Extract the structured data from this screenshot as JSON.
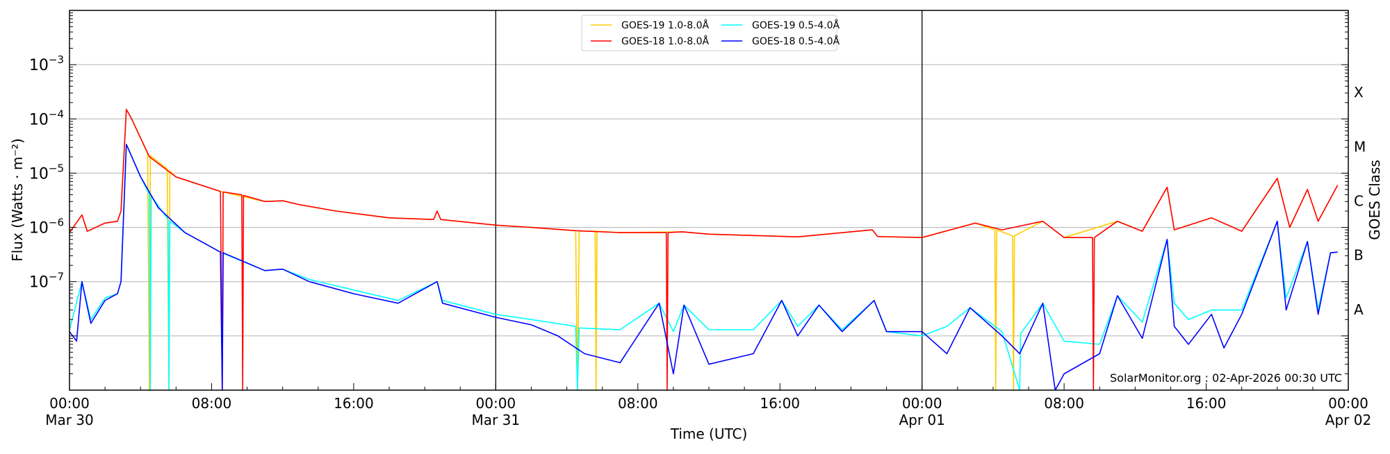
{
  "chart_data": {
    "type": "line",
    "xlabel": "Time (UTC)",
    "ylabel": "Flux (Watts · m⁻²)",
    "ylabel_right": "GOES Class",
    "y_scale": "log",
    "ylim": [
      1e-09,
      0.01
    ],
    "xlim": [
      "2026-03-30 00:00",
      "2026-04-02 00:00"
    ],
    "x_unit": "hours since 2026-03-30 00:00 UTC",
    "grid": "horizontal at decades",
    "legend_placement": "top-center",
    "y_ticks": [
      {
        "value": 0.001,
        "base": "10",
        "exp": "−3"
      },
      {
        "value": 0.0001,
        "base": "10",
        "exp": "−4"
      },
      {
        "value": 1e-05,
        "base": "10",
        "exp": "−5"
      },
      {
        "value": 1e-06,
        "base": "10",
        "exp": "−6"
      },
      {
        "value": 1e-07,
        "base": "10",
        "exp": "−7"
      }
    ],
    "class_ticks": [
      {
        "label": "X",
        "value": 0.000316
      },
      {
        "label": "M",
        "value": 3.16e-05
      },
      {
        "label": "C",
        "value": 3.16e-06
      },
      {
        "label": "B",
        "value": 3.16e-07
      },
      {
        "label": "A",
        "value": 3.16e-08
      }
    ],
    "x_ticks": [
      {
        "hour": 0,
        "time": "00:00",
        "date": "Mar 30"
      },
      {
        "hour": 8,
        "time": "08:00",
        "date": ""
      },
      {
        "hour": 16,
        "time": "16:00",
        "date": ""
      },
      {
        "hour": 24,
        "time": "00:00",
        "date": "Mar 31"
      },
      {
        "hour": 32,
        "time": "08:00",
        "date": ""
      },
      {
        "hour": 40,
        "time": "16:00",
        "date": ""
      },
      {
        "hour": 48,
        "time": "00:00",
        "date": "Apr 01"
      },
      {
        "hour": 56,
        "time": "08:00",
        "date": ""
      },
      {
        "hour": 64,
        "time": "16:00",
        "date": ""
      },
      {
        "hour": 72,
        "time": "00:00",
        "date": "Apr 02"
      }
    ],
    "day_lines": [
      24,
      48
    ],
    "annotation": "SolarMonitor.org : 02-Apr-2026 00:30 UTC",
    "series": [
      {
        "name": "GOES-19 1.0-8.0Å",
        "color": "#ffcc00",
        "points": [
          [
            0,
            8e-07
          ],
          [
            0.7,
            1.7e-06
          ],
          [
            1,
            8.5e-07
          ],
          [
            2,
            1.2e-06
          ],
          [
            2.7,
            1.3e-06
          ],
          [
            2.9,
            2e-06
          ],
          [
            3.2,
            0.00015
          ],
          [
            3.5,
            0.0001
          ],
          [
            4.4,
            2.3e-05
          ],
          [
            4.5,
            1e-09
          ],
          [
            4.55,
            2.1e-05
          ],
          [
            5.5,
            1.2e-05
          ],
          [
            5.6,
            1e-09
          ],
          [
            5.65,
            1.1e-05
          ],
          [
            6,
            8.5e-06
          ],
          [
            8.5,
            4.6e-06
          ],
          [
            11,
            3e-06
          ],
          [
            12,
            3.1e-06
          ],
          [
            13,
            2.6e-06
          ],
          [
            15,
            2e-06
          ],
          [
            18,
            1.5e-06
          ],
          [
            20.5,
            1.4e-06
          ],
          [
            20.7,
            2e-06
          ],
          [
            20.9,
            1.4e-06
          ],
          [
            24,
            1.1e-06
          ],
          [
            26,
            1e-06
          ],
          [
            28.5,
            8.7e-07
          ],
          [
            28.6,
            1e-09
          ],
          [
            28.7,
            8.6e-07
          ],
          [
            29.6,
            8.5e-07
          ],
          [
            29.65,
            1e-09
          ],
          [
            29.7,
            8.5e-07
          ],
          [
            31,
            8e-07
          ],
          [
            34.5,
            8.3e-07
          ],
          [
            36,
            7.5e-07
          ],
          [
            41,
            6.7e-07
          ],
          [
            45.2,
            9e-07
          ],
          [
            45.5,
            6.8e-07
          ],
          [
            48,
            6.5e-07
          ],
          [
            51,
            1.2e-06
          ],
          [
            52.1,
            9e-07
          ],
          [
            52.15,
            1e-09
          ],
          [
            52.2,
            9e-07
          ],
          [
            53.1,
            7e-07
          ],
          [
            53.15,
            1e-09
          ],
          [
            53.2,
            7e-07
          ],
          [
            54.8,
            1.3e-06
          ],
          [
            56,
            6.5e-07
          ],
          [
            59,
            1.3e-06
          ],
          [
            60.4,
            8.5e-07
          ],
          [
            61.8,
            5.5e-06
          ],
          [
            62.2,
            9e-07
          ],
          [
            64.3,
            1.5e-06
          ],
          [
            66,
            8.5e-07
          ],
          [
            68,
            8e-06
          ],
          [
            68.7,
            1e-06
          ],
          [
            69.7,
            5e-06
          ],
          [
            70.3,
            1.3e-06
          ],
          [
            71.4,
            6e-06
          ]
        ]
      },
      {
        "name": "GOES-19 0.5-4.0Å",
        "color": "#00ffff",
        "points": [
          [
            0,
            1.3e-08
          ],
          [
            0.7,
            1e-07
          ],
          [
            1.2,
            2e-08
          ],
          [
            2,
            5e-08
          ],
          [
            2.7,
            6e-08
          ],
          [
            2.9,
            1e-07
          ],
          [
            3.2,
            3.4e-05
          ],
          [
            4,
            8.6e-06
          ],
          [
            4.5,
            4e-06
          ],
          [
            4.55,
            1e-09
          ],
          [
            4.6,
            3.8e-06
          ],
          [
            5.55,
            1.4e-06
          ],
          [
            5.6,
            1e-09
          ],
          [
            5.65,
            1.3e-06
          ],
          [
            6.5,
            8e-07
          ],
          [
            8.5,
            3.5e-07
          ],
          [
            11,
            1.6e-07
          ],
          [
            12,
            1.7e-07
          ],
          [
            13.5,
            1.1e-07
          ],
          [
            16,
            7e-08
          ],
          [
            18.5,
            4.5e-08
          ],
          [
            20.7,
            1e-07
          ],
          [
            21,
            4.5e-08
          ],
          [
            24,
            2.5e-08
          ],
          [
            26,
            2e-08
          ],
          [
            28.5,
            1.5e-08
          ],
          [
            28.6,
            1e-09
          ],
          [
            28.7,
            1.4e-08
          ],
          [
            31,
            1.3e-08
          ],
          [
            33.2,
            4e-08
          ],
          [
            34,
            1.2e-08
          ],
          [
            34.6,
            3.7e-08
          ],
          [
            36,
            1.3e-08
          ],
          [
            38.5,
            1.3e-08
          ],
          [
            40.1,
            4.5e-08
          ],
          [
            41,
            1.5e-08
          ],
          [
            42.2,
            3.7e-08
          ],
          [
            43.5,
            1.3e-08
          ],
          [
            45.3,
            4.5e-08
          ],
          [
            46,
            1.2e-08
          ],
          [
            48,
            1e-08
          ],
          [
            49.4,
            1.5e-08
          ],
          [
            50.7,
            3.3e-08
          ],
          [
            52.5,
            1.2e-08
          ],
          [
            53.5,
            1e-09
          ],
          [
            53.55,
            1.1e-08
          ],
          [
            54.8,
            4e-08
          ],
          [
            56,
            8e-09
          ],
          [
            58,
            7e-09
          ],
          [
            59,
            5.5e-08
          ],
          [
            60.4,
            1.8e-08
          ],
          [
            61.8,
            6e-07
          ],
          [
            62.2,
            4e-08
          ],
          [
            63,
            2e-08
          ],
          [
            64.3,
            3e-08
          ],
          [
            66,
            3e-08
          ],
          [
            68,
            1.3e-06
          ],
          [
            68.5,
            5e-08
          ],
          [
            69.7,
            5.5e-07
          ],
          [
            70.3,
            3e-08
          ],
          [
            71,
            3.4e-07
          ],
          [
            71.4,
            3.5e-07
          ]
        ]
      },
      {
        "name": "GOES-18 1.0-8.0Å",
        "color": "#ff0000",
        "points": [
          [
            0,
            8e-07
          ],
          [
            0.7,
            1.7e-06
          ],
          [
            1,
            8.5e-07
          ],
          [
            2,
            1.2e-06
          ],
          [
            2.7,
            1.3e-06
          ],
          [
            2.9,
            2e-06
          ],
          [
            3.2,
            0.00015
          ],
          [
            3.5,
            0.0001
          ],
          [
            4.5,
            2e-05
          ],
          [
            6,
            8.5e-06
          ],
          [
            8.5,
            4.6e-06
          ],
          [
            8.6,
            1e-09
          ],
          [
            8.65,
            4.5e-06
          ],
          [
            9.7,
            4e-06
          ],
          [
            9.75,
            1e-09
          ],
          [
            9.8,
            3.9e-06
          ],
          [
            11,
            3e-06
          ],
          [
            12,
            3.1e-06
          ],
          [
            13,
            2.6e-06
          ],
          [
            15,
            2e-06
          ],
          [
            18,
            1.5e-06
          ],
          [
            20.5,
            1.4e-06
          ],
          [
            20.7,
            2e-06
          ],
          [
            20.9,
            1.4e-06
          ],
          [
            24,
            1.1e-06
          ],
          [
            26,
            1e-06
          ],
          [
            28.5,
            8.7e-07
          ],
          [
            31,
            8e-07
          ],
          [
            33.6,
            8e-07
          ],
          [
            33.65,
            1e-09
          ],
          [
            33.7,
            8e-07
          ],
          [
            34.5,
            8.3e-07
          ],
          [
            36,
            7.5e-07
          ],
          [
            41,
            6.7e-07
          ],
          [
            45.2,
            9e-07
          ],
          [
            45.5,
            6.8e-07
          ],
          [
            48,
            6.5e-07
          ],
          [
            51,
            1.2e-06
          ],
          [
            52.5,
            9e-07
          ],
          [
            54.8,
            1.3e-06
          ],
          [
            56,
            6.5e-07
          ],
          [
            57.6,
            6.5e-07
          ],
          [
            57.65,
            1e-09
          ],
          [
            57.7,
            6.5e-07
          ],
          [
            59,
            1.3e-06
          ],
          [
            60.4,
            8.5e-07
          ],
          [
            61.8,
            5.5e-06
          ],
          [
            62.2,
            9e-07
          ],
          [
            64.3,
            1.5e-06
          ],
          [
            66,
            8.5e-07
          ],
          [
            68,
            8e-06
          ],
          [
            68.7,
            1e-06
          ],
          [
            69.7,
            5e-06
          ],
          [
            70.3,
            1.3e-06
          ],
          [
            71.4,
            6e-06
          ]
        ]
      },
      {
        "name": "GOES-18 0.5-4.0Å",
        "color": "#0000ff",
        "points": [
          [
            0,
            1.2e-08
          ],
          [
            0.4,
            8e-09
          ],
          [
            0.7,
            1e-07
          ],
          [
            1.2,
            1.7e-08
          ],
          [
            2,
            4.5e-08
          ],
          [
            2.7,
            6e-08
          ],
          [
            2.9,
            1e-07
          ],
          [
            3.2,
            3.4e-05
          ],
          [
            4,
            8.6e-06
          ],
          [
            5,
            2.3e-06
          ],
          [
            6.5,
            8e-07
          ],
          [
            8.5,
            3.5e-07
          ],
          [
            8.6,
            1e-09
          ],
          [
            8.65,
            3.4e-07
          ],
          [
            11,
            1.6e-07
          ],
          [
            12,
            1.7e-07
          ],
          [
            13.5,
            1e-07
          ],
          [
            16,
            6e-08
          ],
          [
            18.5,
            4e-08
          ],
          [
            20.7,
            1e-07
          ],
          [
            21,
            4e-08
          ],
          [
            24,
            2.2e-08
          ],
          [
            26,
            1.6e-08
          ],
          [
            27.5,
            1e-08
          ],
          [
            29,
            4.7e-09
          ],
          [
            31,
            3.2e-09
          ],
          [
            33.2,
            4e-08
          ],
          [
            34,
            2e-09
          ],
          [
            34.6,
            3.7e-08
          ],
          [
            36,
            3e-09
          ],
          [
            38.5,
            4.7e-09
          ],
          [
            40.1,
            4.5e-08
          ],
          [
            41,
            1e-08
          ],
          [
            42.2,
            3.7e-08
          ],
          [
            43.5,
            1.2e-08
          ],
          [
            45.3,
            4.5e-08
          ],
          [
            46,
            1.2e-08
          ],
          [
            48,
            1.2e-08
          ],
          [
            49.4,
            4.7e-09
          ],
          [
            50.7,
            3.3e-08
          ],
          [
            52.5,
            1e-08
          ],
          [
            53.5,
            4.7e-09
          ],
          [
            54.8,
            4e-08
          ],
          [
            55.5,
            1e-09
          ],
          [
            56,
            2e-09
          ],
          [
            58,
            4.7e-09
          ],
          [
            59,
            5.5e-08
          ],
          [
            60.4,
            9e-09
          ],
          [
            61.8,
            6e-07
          ],
          [
            62.2,
            1.5e-08
          ],
          [
            63,
            7e-09
          ],
          [
            64.3,
            2.5e-08
          ],
          [
            65,
            6e-09
          ],
          [
            66,
            2.5e-08
          ],
          [
            68,
            1.3e-06
          ],
          [
            68.5,
            3e-08
          ],
          [
            69.7,
            5.5e-07
          ],
          [
            70.3,
            2.5e-08
          ],
          [
            71,
            3.4e-07
          ],
          [
            71.4,
            3.5e-07
          ]
        ]
      }
    ]
  }
}
